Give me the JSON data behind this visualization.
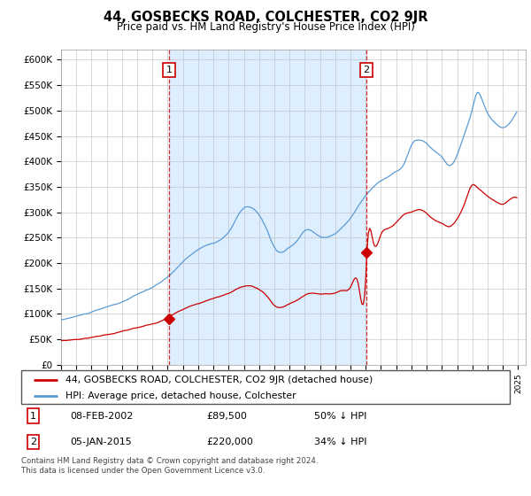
{
  "title": "44, GOSBECKS ROAD, COLCHESTER, CO2 9JR",
  "subtitle": "Price paid vs. HM Land Registry's House Price Index (HPI)",
  "legend_line1": "44, GOSBECKS ROAD, COLCHESTER, CO2 9JR (detached house)",
  "legend_line2": "HPI: Average price, detached house, Colchester",
  "annotation1_date": "08-FEB-2002",
  "annotation1_price": "£89,500",
  "annotation1_hpi": "50% ↓ HPI",
  "annotation2_date": "05-JAN-2015",
  "annotation2_price": "£220,000",
  "annotation2_hpi": "34% ↓ HPI",
  "footer": "Contains HM Land Registry data © Crown copyright and database right 2024.\nThis data is licensed under the Open Government Licence v3.0.",
  "hpi_color": "#5b9bd5",
  "hpi_fill_color": "#ddeeff",
  "price_color": "#cc0000",
  "ylim": [
    0,
    620000
  ],
  "yticks": [
    0,
    50000,
    100000,
    150000,
    200000,
    250000,
    300000,
    350000,
    400000,
    450000,
    500000,
    550000,
    600000
  ],
  "ytick_labels": [
    "£0",
    "£50K",
    "£100K",
    "£150K",
    "£200K",
    "£250K",
    "£300K",
    "£350K",
    "£400K",
    "£450K",
    "£500K",
    "£550K",
    "£600K"
  ],
  "sale1_x": 2002.1,
  "sale1_y": 89500,
  "sale2_x": 2015.03,
  "sale2_y": 220000,
  "vline1_x": 2002.1,
  "vline2_x": 2015.03,
  "xmin": 1995,
  "xmax": 2025.5
}
